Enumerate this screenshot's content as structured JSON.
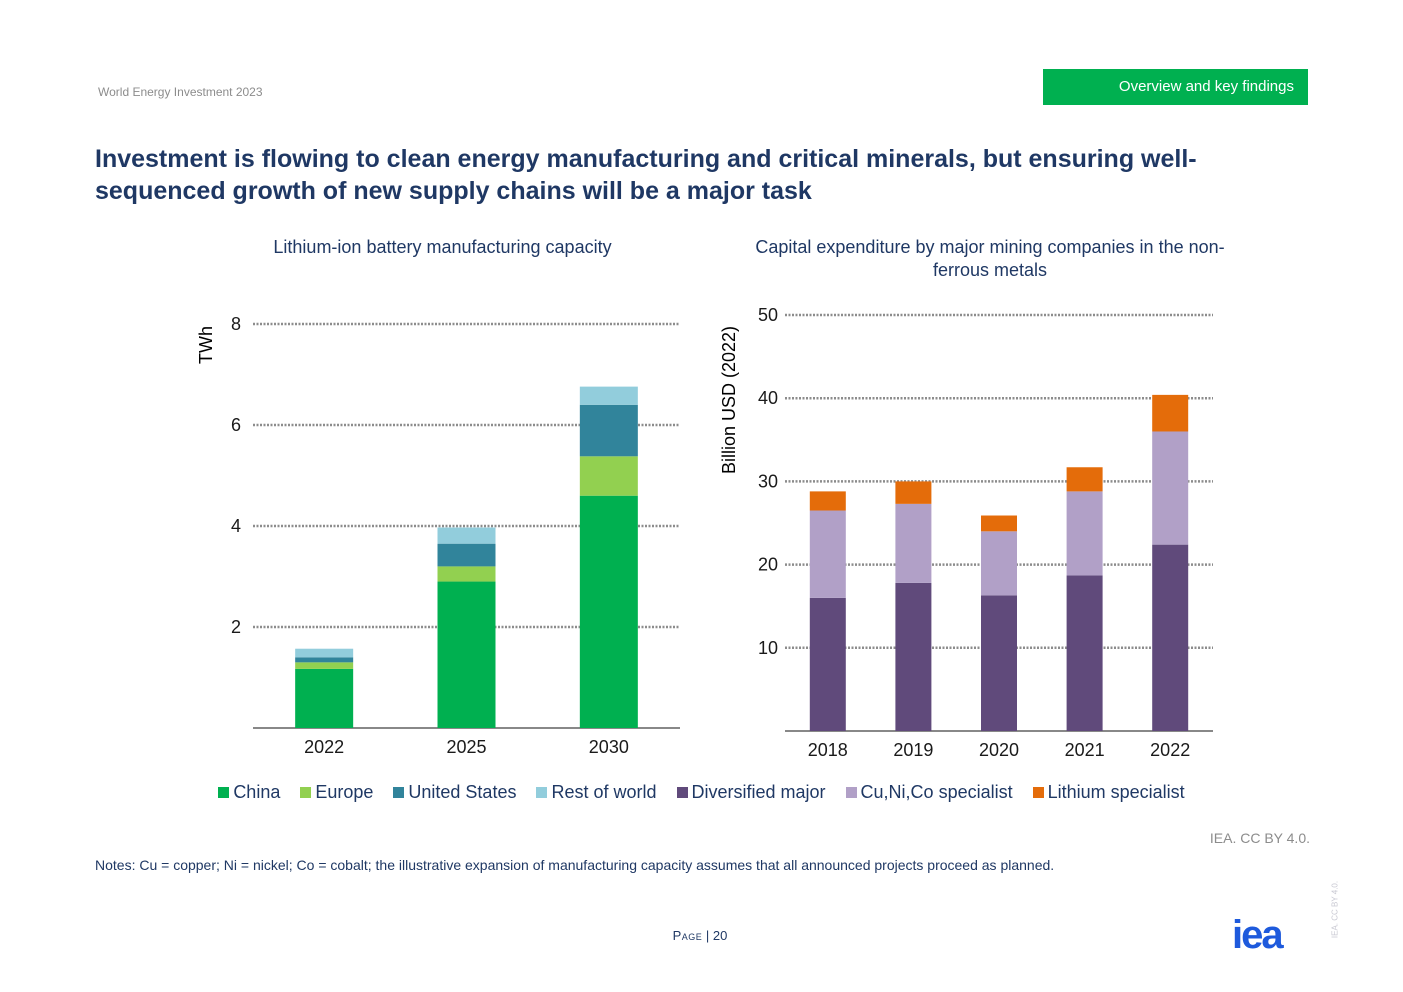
{
  "header": {
    "report_name": "World Energy Investment 2023",
    "section_tag": "Overview and key findings"
  },
  "headline": "Investment is flowing to clean energy manufacturing and critical minerals, but ensuring well-sequenced growth of new supply chains will be a major task",
  "colors": {
    "China": "#00b050",
    "Europe": "#92d050",
    "United States": "#31849b",
    "Rest of world": "#92cddc",
    "Diversified major": "#604a7b",
    "Cu,Ni,Co specialist": "#b1a0c7",
    "Lithium specialist": "#e46c0a",
    "section_tag": "#00b050",
    "title": "#1f3864",
    "logo": "#1e5adc"
  },
  "chart_data": [
    {
      "type": "bar",
      "stacked": true,
      "title": "Lithium-ion battery manufacturing capacity",
      "ylabel": "TWh",
      "ylim": [
        0,
        8
      ],
      "yticks": [
        2,
        4,
        6,
        8
      ],
      "grid": true,
      "categories": [
        "2022",
        "2025",
        "2030"
      ],
      "series": [
        {
          "name": "China",
          "values": [
            1.17,
            2.9,
            4.6
          ]
        },
        {
          "name": "Europe",
          "values": [
            0.13,
            0.3,
            0.78
          ]
        },
        {
          "name": "United States",
          "values": [
            0.1,
            0.45,
            1.02
          ]
        },
        {
          "name": "Rest of world",
          "values": [
            0.17,
            0.32,
            0.36
          ]
        }
      ]
    },
    {
      "type": "bar",
      "stacked": true,
      "title": "Capital expenditure by major mining companies in the non-ferrous metals",
      "ylabel": "Billion USD (2022)",
      "ylim": [
        0,
        50
      ],
      "yticks": [
        10,
        20,
        30,
        40,
        50
      ],
      "grid": true,
      "categories": [
        "2018",
        "2019",
        "2020",
        "2021",
        "2022"
      ],
      "series": [
        {
          "name": "Diversified major",
          "values": [
            16,
            17.8,
            16.3,
            18.7,
            22.4
          ]
        },
        {
          "name": "Cu,Ni,Co specialist",
          "values": [
            10.5,
            9.5,
            7.7,
            10.1,
            13.6
          ]
        },
        {
          "name": "Lithium specialist",
          "values": [
            2.3,
            2.7,
            1.9,
            2.9,
            4.4
          ]
        }
      ]
    }
  ],
  "legend": [
    "China",
    "Europe",
    "United States",
    "Rest of world",
    "Diversified major",
    "Cu,Ni,Co specialist",
    "Lithium specialist"
  ],
  "footer": {
    "license": "IEA. CC BY 4.0.",
    "notes": "Notes: Cu = copper; Ni = nickel; Co = cobalt; the illustrative expansion of manufacturing capacity assumes that all announced projects proceed as planned.",
    "page_label": "Page",
    "page_number": "| 20",
    "logo_text": "iea",
    "vertical_license": "IEA. CC BY 4.0."
  }
}
